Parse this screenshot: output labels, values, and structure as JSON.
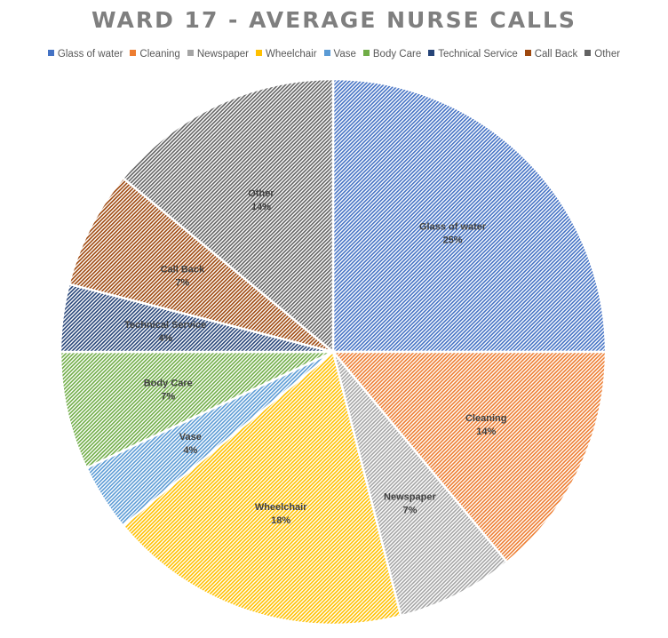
{
  "chart_data": {
    "type": "pie",
    "title": "WARD 17 - AVERAGE NURSE CALLS",
    "legend_position": "top",
    "slices": [
      {
        "label": "Glass of water",
        "value": 25,
        "display": "25%",
        "color": "#4472c4"
      },
      {
        "label": "Cleaning",
        "value": 14,
        "display": "14%",
        "color": "#ed7d31"
      },
      {
        "label": "Newspaper",
        "value": 7,
        "display": "7%",
        "color": "#a5a5a5"
      },
      {
        "label": "Wheelchair",
        "value": 18,
        "display": "18%",
        "color": "#ffc000"
      },
      {
        "label": "Vase",
        "value": 4,
        "display": "4%",
        "color": "#5b9bd5"
      },
      {
        "label": "Body Care",
        "value": 7,
        "display": "7%",
        "color": "#70ad47"
      },
      {
        "label": "Technical Service",
        "value": 4,
        "display": "4%",
        "color": "#264478"
      },
      {
        "label": "Call Back",
        "value": 7,
        "display": "7%",
        "color": "#9e480e"
      },
      {
        "label": "Other",
        "value": 14,
        "display": "14%",
        "color": "#636363"
      }
    ]
  }
}
